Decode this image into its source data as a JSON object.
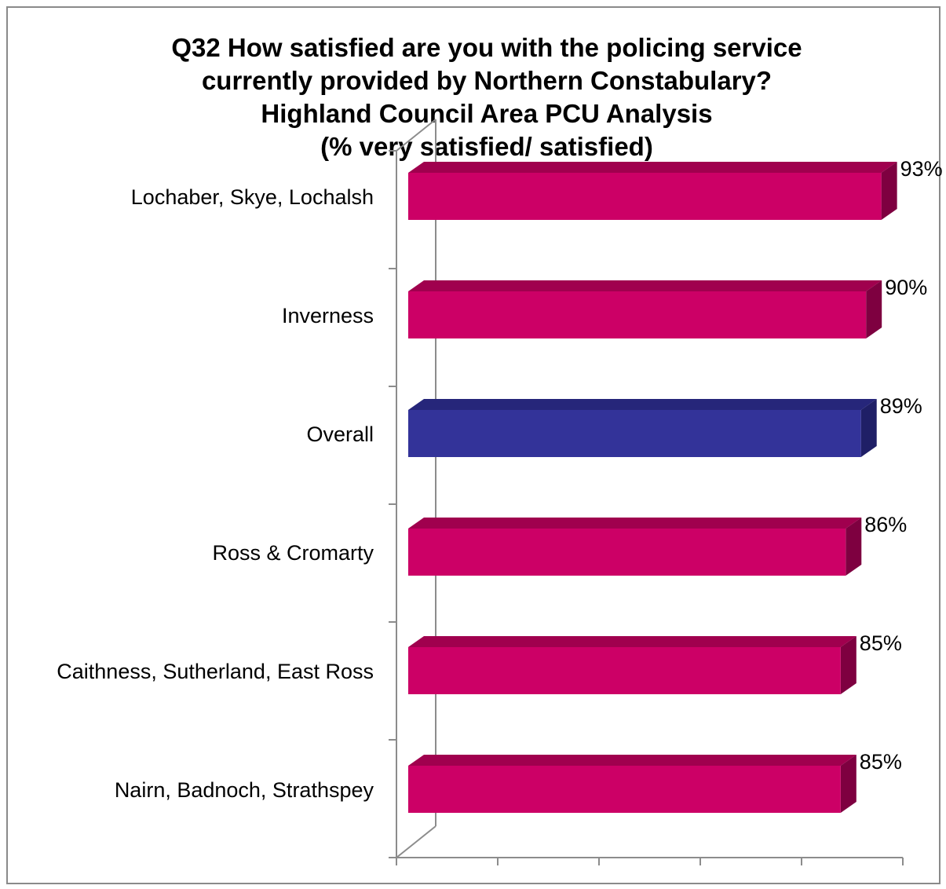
{
  "chart_data": {
    "type": "bar",
    "orientation": "horizontal",
    "title_lines": [
      "Q32 How satisfied are you with the policing service",
      "currently provided by Northern Constabulary?",
      "Highland Council Area PCU Analysis",
      "(% very satisfied/ satisfied)"
    ],
    "categories": [
      "Lochaber, Skye, Lochalsh",
      "Inverness",
      "Overall",
      "Ross & Cromarty",
      "Caithness, Sutherland, East Ross",
      "Nairn, Badnoch, Strathspey"
    ],
    "values": [
      93,
      90,
      89,
      86,
      85,
      85
    ],
    "data_labels": [
      "93%",
      "90%",
      "89%",
      "86%",
      "85%",
      "85%"
    ],
    "highlight_category": "Overall",
    "xlim": [
      0,
      100
    ],
    "x_ticks_labeled": false,
    "grid": false,
    "legend": "none",
    "style": "3d-bar",
    "colors": {
      "bar": "#cc0066",
      "bar_top": "#a0004e",
      "bar_side": "#7e0040",
      "highlight": "#333399",
      "highlight_top": "#26267a",
      "highlight_side": "#1f1f66",
      "axis": "#8c8c8c"
    }
  }
}
